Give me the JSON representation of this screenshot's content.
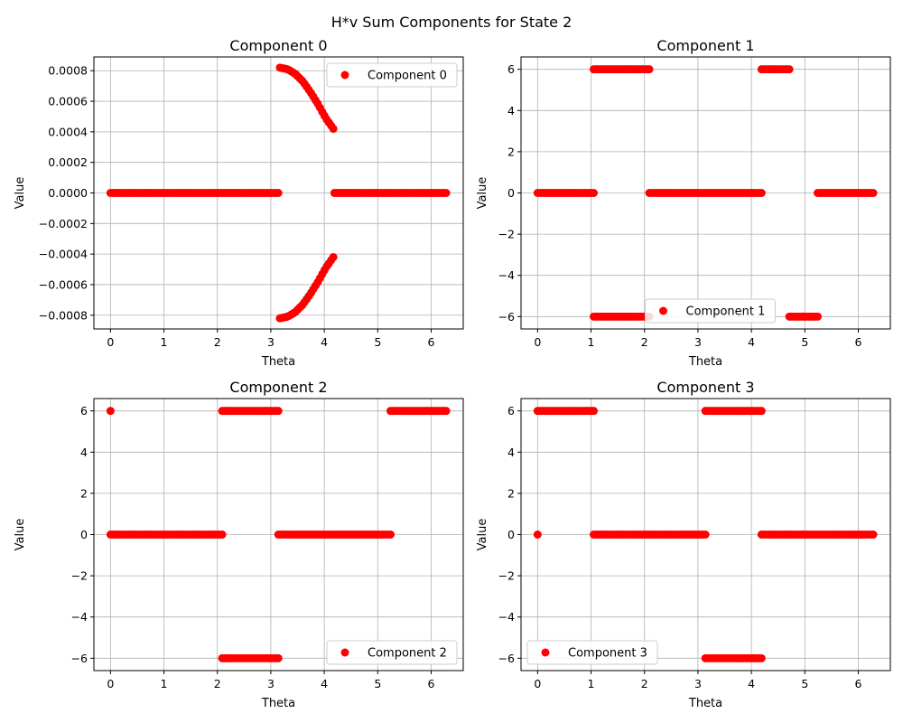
{
  "figure": {
    "suptitle": "H*v Sum Components for State 2"
  },
  "colors": {
    "marker": "#ff0000",
    "grid": "#b0b0b0",
    "axis": "#000000",
    "legend_border": "#cccccc"
  },
  "chart_data": [
    {
      "type": "scatter",
      "title": "Component 0",
      "xlabel": "Theta",
      "ylabel": "Value",
      "xlim": [
        -0.31,
        6.6
      ],
      "ylim": [
        -0.00089,
        0.00089
      ],
      "xticks": [
        0,
        1,
        2,
        3,
        4,
        5,
        6
      ],
      "yticks": [
        -0.0008,
        -0.0006,
        -0.0004,
        -0.0002,
        0.0,
        0.0002,
        0.0004,
        0.0006,
        0.0008
      ],
      "ytick_labels": [
        "−0.0008",
        "−0.0006",
        "−0.0004",
        "−0.0002",
        "0.0000",
        "0.0002",
        "0.0004",
        "0.0006",
        "0.0008"
      ],
      "grid": true,
      "legend": {
        "loc": "upper-right",
        "entries": [
          "Component 0"
        ]
      },
      "series": [
        {
          "name": "Component 0",
          "segments": [
            {
              "kind": "const",
              "x0": 0,
              "x1": 3.14,
              "y": 0
            },
            {
              "kind": "const",
              "x0": 4.19,
              "x1": 6.28,
              "y": 0
            },
            {
              "kind": "curve",
              "x0": 3.17,
              "x1": 4.17,
              "y": [
                0.00082,
                0.00081,
                0.00078,
                0.00073,
                0.00066,
                0.00058,
                0.00049,
                0.00042
              ]
            },
            {
              "kind": "curve",
              "x0": 3.17,
              "x1": 4.17,
              "y": [
                -0.00082,
                -0.00081,
                -0.00078,
                -0.00073,
                -0.00066,
                -0.00058,
                -0.00049,
                -0.00042
              ]
            }
          ]
        }
      ]
    },
    {
      "type": "scatter",
      "title": "Component 1",
      "xlabel": "Theta",
      "ylabel": "Value",
      "xlim": [
        -0.31,
        6.6
      ],
      "ylim": [
        -6.6,
        6.6
      ],
      "xticks": [
        0,
        1,
        2,
        3,
        4,
        5,
        6
      ],
      "yticks": [
        -6,
        -4,
        -2,
        0,
        2,
        4,
        6
      ],
      "ytick_labels": [
        "−6",
        "−4",
        "−2",
        "0",
        "2",
        "4",
        "6"
      ],
      "grid": true,
      "legend": {
        "loc": "lower-center",
        "entries": [
          "Component 1"
        ]
      },
      "series": [
        {
          "name": "Component 1",
          "segments": [
            {
              "kind": "const",
              "x0": 0,
              "x1": 1.05,
              "y": 0
            },
            {
              "kind": "const",
              "x0": 1.05,
              "x1": 2.09,
              "y": 6
            },
            {
              "kind": "const",
              "x0": 1.05,
              "x1": 2.09,
              "y": -6
            },
            {
              "kind": "const",
              "x0": 2.09,
              "x1": 4.19,
              "y": 0
            },
            {
              "kind": "const",
              "x0": 4.19,
              "x1": 4.71,
              "y": 6
            },
            {
              "kind": "const",
              "x0": 4.71,
              "x1": 5.24,
              "y": -6
            },
            {
              "kind": "const",
              "x0": 5.24,
              "x1": 6.28,
              "y": 0
            }
          ]
        }
      ]
    },
    {
      "type": "scatter",
      "title": "Component 2",
      "xlabel": "Theta",
      "ylabel": "Value",
      "xlim": [
        -0.31,
        6.6
      ],
      "ylim": [
        -6.6,
        6.6
      ],
      "xticks": [
        0,
        1,
        2,
        3,
        4,
        5,
        6
      ],
      "yticks": [
        -6,
        -4,
        -2,
        0,
        2,
        4,
        6
      ],
      "ytick_labels": [
        "−6",
        "−4",
        "−2",
        "0",
        "2",
        "4",
        "6"
      ],
      "grid": true,
      "legend": {
        "loc": "lower-right",
        "entries": [
          "Component 2"
        ]
      },
      "series": [
        {
          "name": "Component 2",
          "segments": [
            {
              "kind": "point",
              "x": 0,
              "y": 6
            },
            {
              "kind": "const",
              "x0": 0,
              "x1": 2.09,
              "y": 0
            },
            {
              "kind": "const",
              "x0": 2.09,
              "x1": 3.14,
              "y": 6
            },
            {
              "kind": "const",
              "x0": 2.09,
              "x1": 3.14,
              "y": -6
            },
            {
              "kind": "const",
              "x0": 3.14,
              "x1": 5.24,
              "y": 0
            },
            {
              "kind": "const",
              "x0": 5.24,
              "x1": 6.28,
              "y": 6
            }
          ]
        }
      ]
    },
    {
      "type": "scatter",
      "title": "Component 3",
      "xlabel": "Theta",
      "ylabel": "Value",
      "xlim": [
        -0.31,
        6.6
      ],
      "ylim": [
        -6.6,
        6.6
      ],
      "xticks": [
        0,
        1,
        2,
        3,
        4,
        5,
        6
      ],
      "yticks": [
        -6,
        -4,
        -2,
        0,
        2,
        4,
        6
      ],
      "ytick_labels": [
        "−6",
        "−4",
        "−2",
        "0",
        "2",
        "4",
        "6"
      ],
      "grid": true,
      "legend": {
        "loc": "lower-left",
        "entries": [
          "Component 3"
        ]
      },
      "series": [
        {
          "name": "Component 3",
          "segments": [
            {
              "kind": "point",
              "x": 0,
              "y": 0
            },
            {
              "kind": "const",
              "x0": 0,
              "x1": 1.05,
              "y": 6
            },
            {
              "kind": "const",
              "x0": 1.05,
              "x1": 3.14,
              "y": 0
            },
            {
              "kind": "const",
              "x0": 3.14,
              "x1": 4.19,
              "y": 6
            },
            {
              "kind": "const",
              "x0": 3.14,
              "x1": 4.19,
              "y": -6
            },
            {
              "kind": "const",
              "x0": 4.19,
              "x1": 6.28,
              "y": 0
            }
          ]
        }
      ]
    }
  ]
}
